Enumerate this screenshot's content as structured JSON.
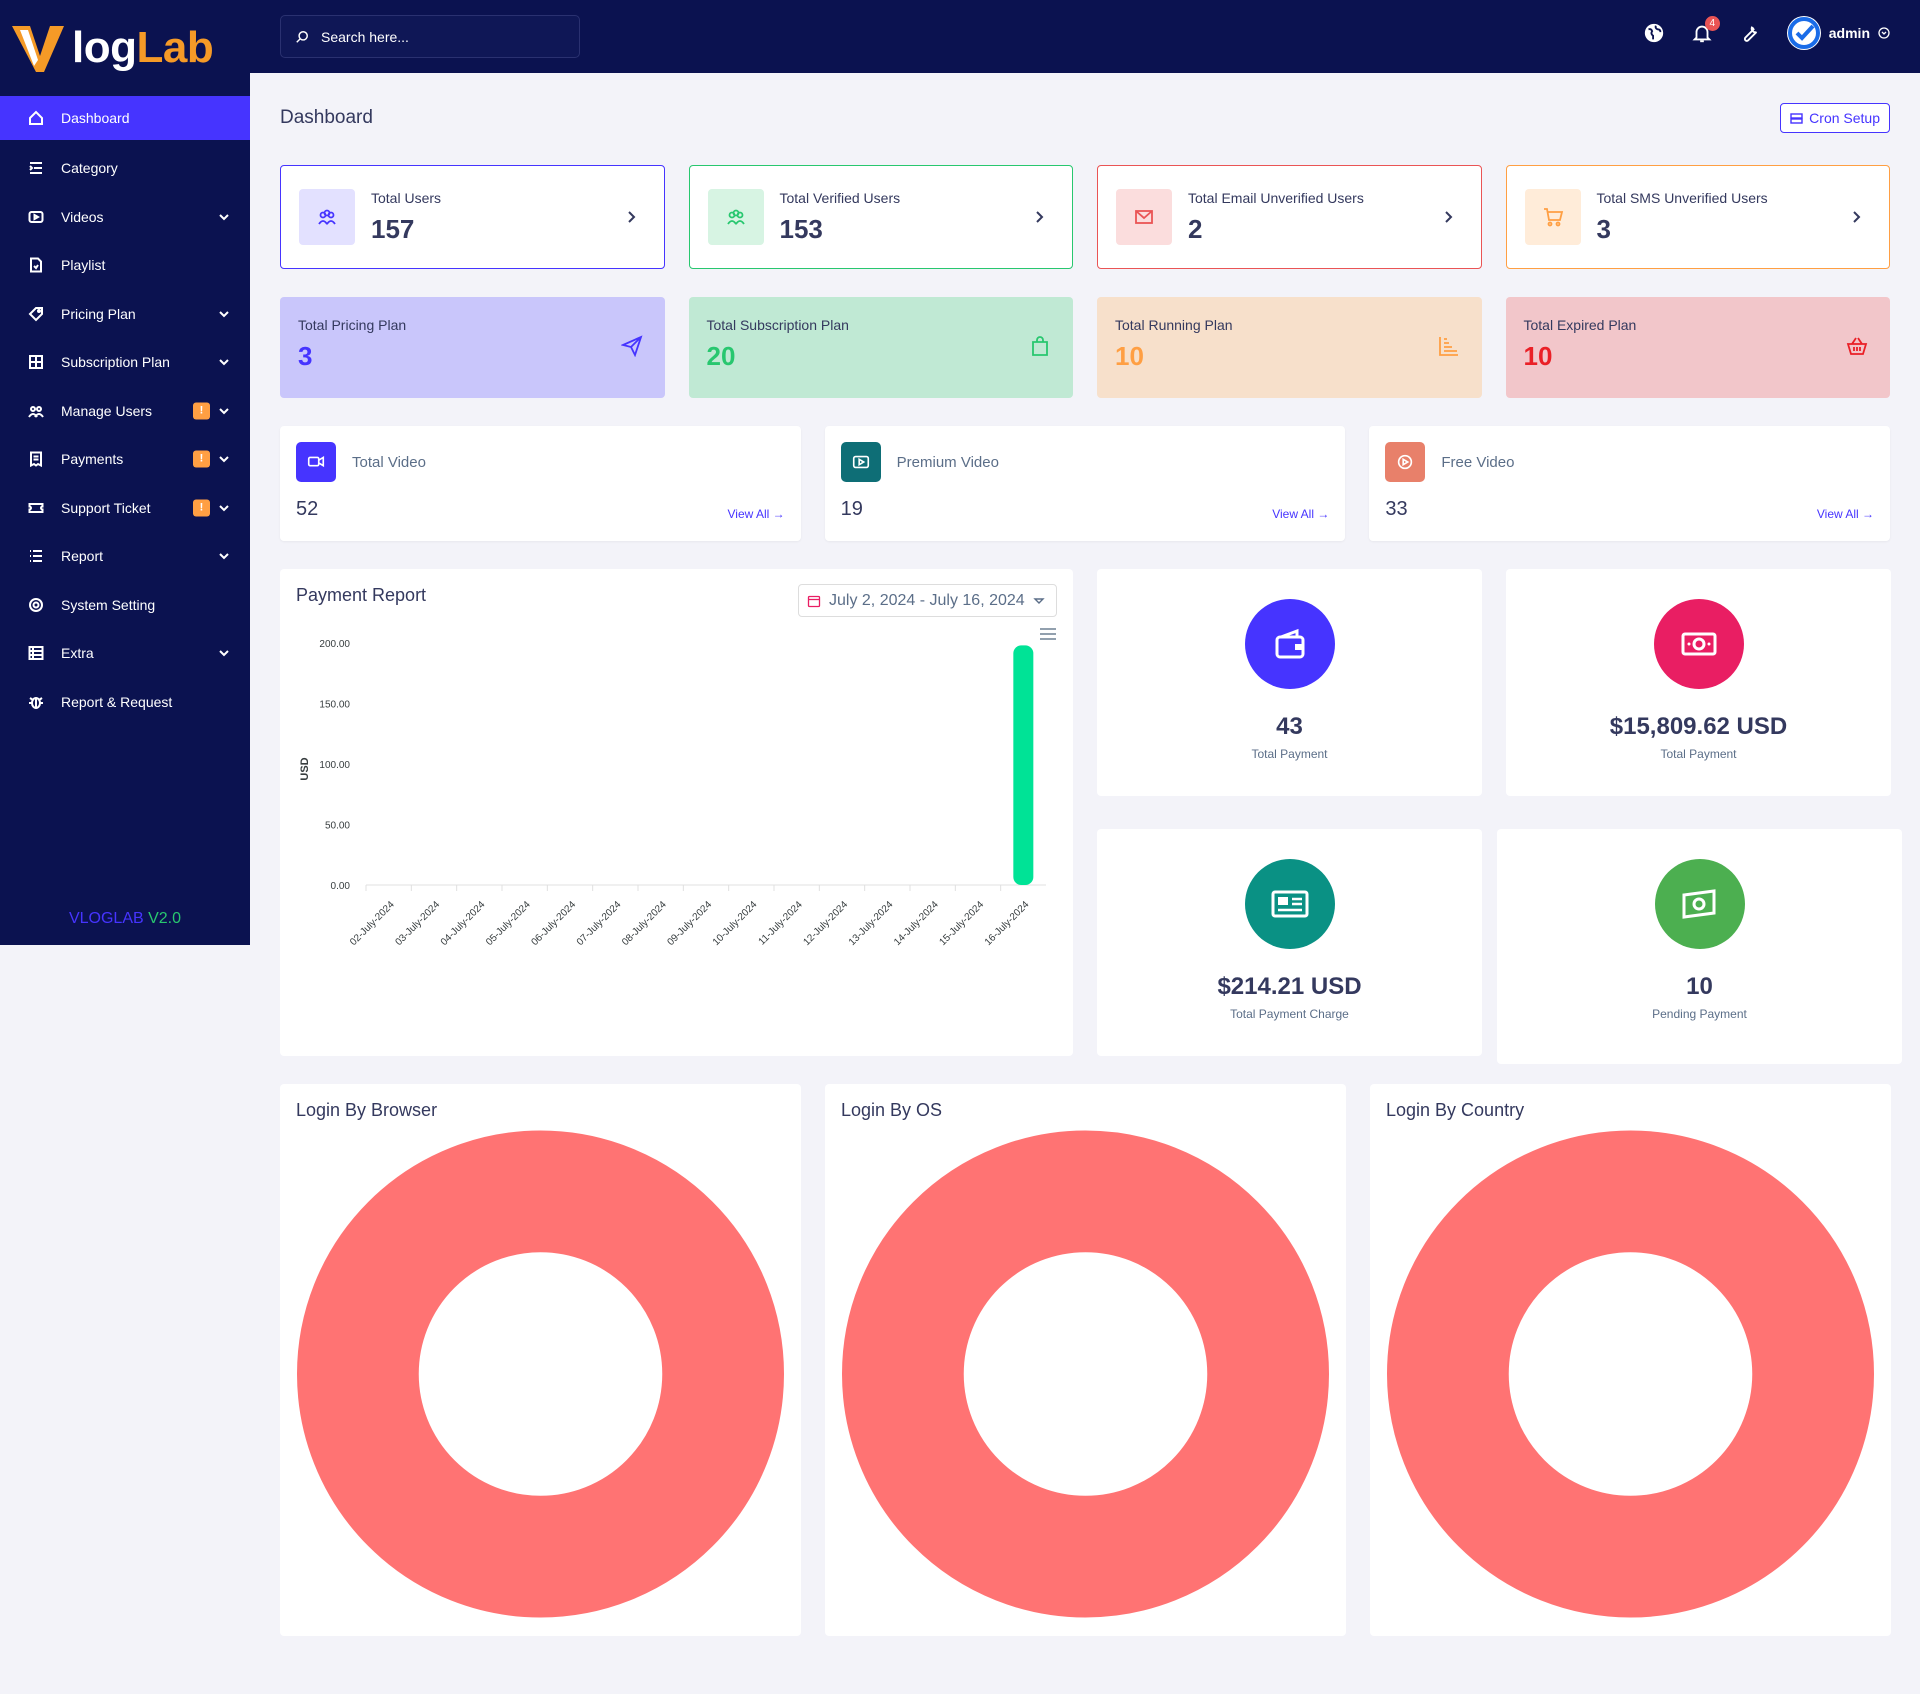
{
  "brand": {
    "logo_part1": "log",
    "logo_part2": "Lab",
    "version_label": "VLOGLAB",
    "version_num": "V2.0"
  },
  "sidebar": {
    "items": [
      {
        "label": "Dashboard",
        "icon": "home-icon",
        "active": true
      },
      {
        "label": "Category",
        "icon": "list-indent-icon"
      },
      {
        "label": "Videos",
        "icon": "video-icon",
        "has_children": true
      },
      {
        "label": "Playlist",
        "icon": "file-icon"
      },
      {
        "label": "Pricing Plan",
        "icon": "tag-icon",
        "has_children": true
      },
      {
        "label": "Subscription Plan",
        "icon": "grid-icon",
        "has_children": true
      },
      {
        "label": "Manage Users",
        "icon": "users-icon",
        "has_children": true,
        "warning": "!"
      },
      {
        "label": "Payments",
        "icon": "receipt-icon",
        "has_children": true,
        "warning": "!"
      },
      {
        "label": "Support Ticket",
        "icon": "ticket-icon",
        "has_children": true,
        "warning": "!"
      },
      {
        "label": "Report",
        "icon": "list-icon",
        "has_children": true
      },
      {
        "label": "System Setting",
        "icon": "gear-icon"
      },
      {
        "label": "Extra",
        "icon": "server-icon",
        "has_children": true
      },
      {
        "label": "Report & Request",
        "icon": "bug-icon"
      }
    ]
  },
  "topbar": {
    "search_placeholder": "Search here...",
    "notification_count": "4",
    "user_name": "admin"
  },
  "page": {
    "title": "Dashboard",
    "cron_label": "Cron Setup"
  },
  "user_widgets": [
    {
      "label": "Total Users",
      "value": "157",
      "color": "#4634ff",
      "bg": "#e3e1ff"
    },
    {
      "label": "Total Verified Users",
      "value": "153",
      "color": "#28c76f",
      "bg": "#d7f4e3"
    },
    {
      "label": "Total Email Unverified Users",
      "value": "2",
      "color": "#ea5455",
      "bg": "#fbdddd"
    },
    {
      "label": "Total SMS Unverified Users",
      "value": "3",
      "color": "#ff9f43",
      "bg": "#ffecd9"
    }
  ],
  "plan_widgets": [
    {
      "label": "Total Pricing Plan",
      "value": "3",
      "color": "#4634ff",
      "bg": "#c9c6fb",
      "icon": "send-icon"
    },
    {
      "label": "Total Subscription Plan",
      "value": "20",
      "color": "#28c76f",
      "bg": "#c0e9d4",
      "icon": "bag-icon"
    },
    {
      "label": "Total Running Plan",
      "value": "10",
      "color": "#ff9f43",
      "bg": "#f7e0cb",
      "icon": "bar-chart-icon"
    },
    {
      "label": "Total Expired Plan",
      "value": "10",
      "color": "#ea2027",
      "bg": "#f2c6ca",
      "icon": "basket-icon"
    }
  ],
  "video_widgets": [
    {
      "label": "Total Video",
      "value": "52",
      "link": "View All",
      "color": "#4634ff"
    },
    {
      "label": "Premium Video",
      "value": "19",
      "link": "View All",
      "color": "#0e6e76"
    },
    {
      "label": "Free Video",
      "value": "33",
      "link": "View All",
      "color": "#e8806a"
    }
  ],
  "payment_report": {
    "title": "Payment Report",
    "date_range": "July 2, 2024 - July 16, 2024"
  },
  "chart_data": {
    "type": "bar",
    "title": "Payment Report",
    "ylabel": "USD",
    "xlabel": "",
    "ylim": [
      0,
      200
    ],
    "yticks": [
      "0.00",
      "50.00",
      "100.00",
      "150.00",
      "200.00"
    ],
    "categories": [
      "02-July-2024",
      "03-July-2024",
      "04-July-2024",
      "05-July-2024",
      "06-July-2024",
      "07-July-2024",
      "08-July-2024",
      "09-July-2024",
      "10-July-2024",
      "11-July-2024",
      "12-July-2024",
      "13-July-2024",
      "14-July-2024",
      "15-July-2024",
      "16-July-2024"
    ],
    "values": [
      0,
      0,
      0,
      0,
      0,
      0,
      0,
      0,
      0,
      0,
      0,
      0,
      0,
      0,
      198
    ],
    "color": "#00e396",
    "grid": false
  },
  "stats": [
    {
      "value": "43",
      "label": "Total Payment",
      "color": "#4634ff",
      "icon": "wallet-icon"
    },
    {
      "value": "$15,809.62 USD",
      "label": "Total Payment",
      "color": "#e91e63",
      "icon": "money-icon"
    },
    {
      "value": "$214.21 USD",
      "label": "Total Payment Charge",
      "color": "#0a9184",
      "icon": "id-card-icon"
    },
    {
      "value": "10",
      "label": "Pending Payment",
      "color": "#4caf50",
      "icon": "money-pending-icon"
    }
  ],
  "donuts": [
    {
      "title": "Login By Browser",
      "color": "#ff7373"
    },
    {
      "title": "Login By OS",
      "color": "#ff7373"
    },
    {
      "title": "Login By Country",
      "color": "#ff7373"
    }
  ]
}
